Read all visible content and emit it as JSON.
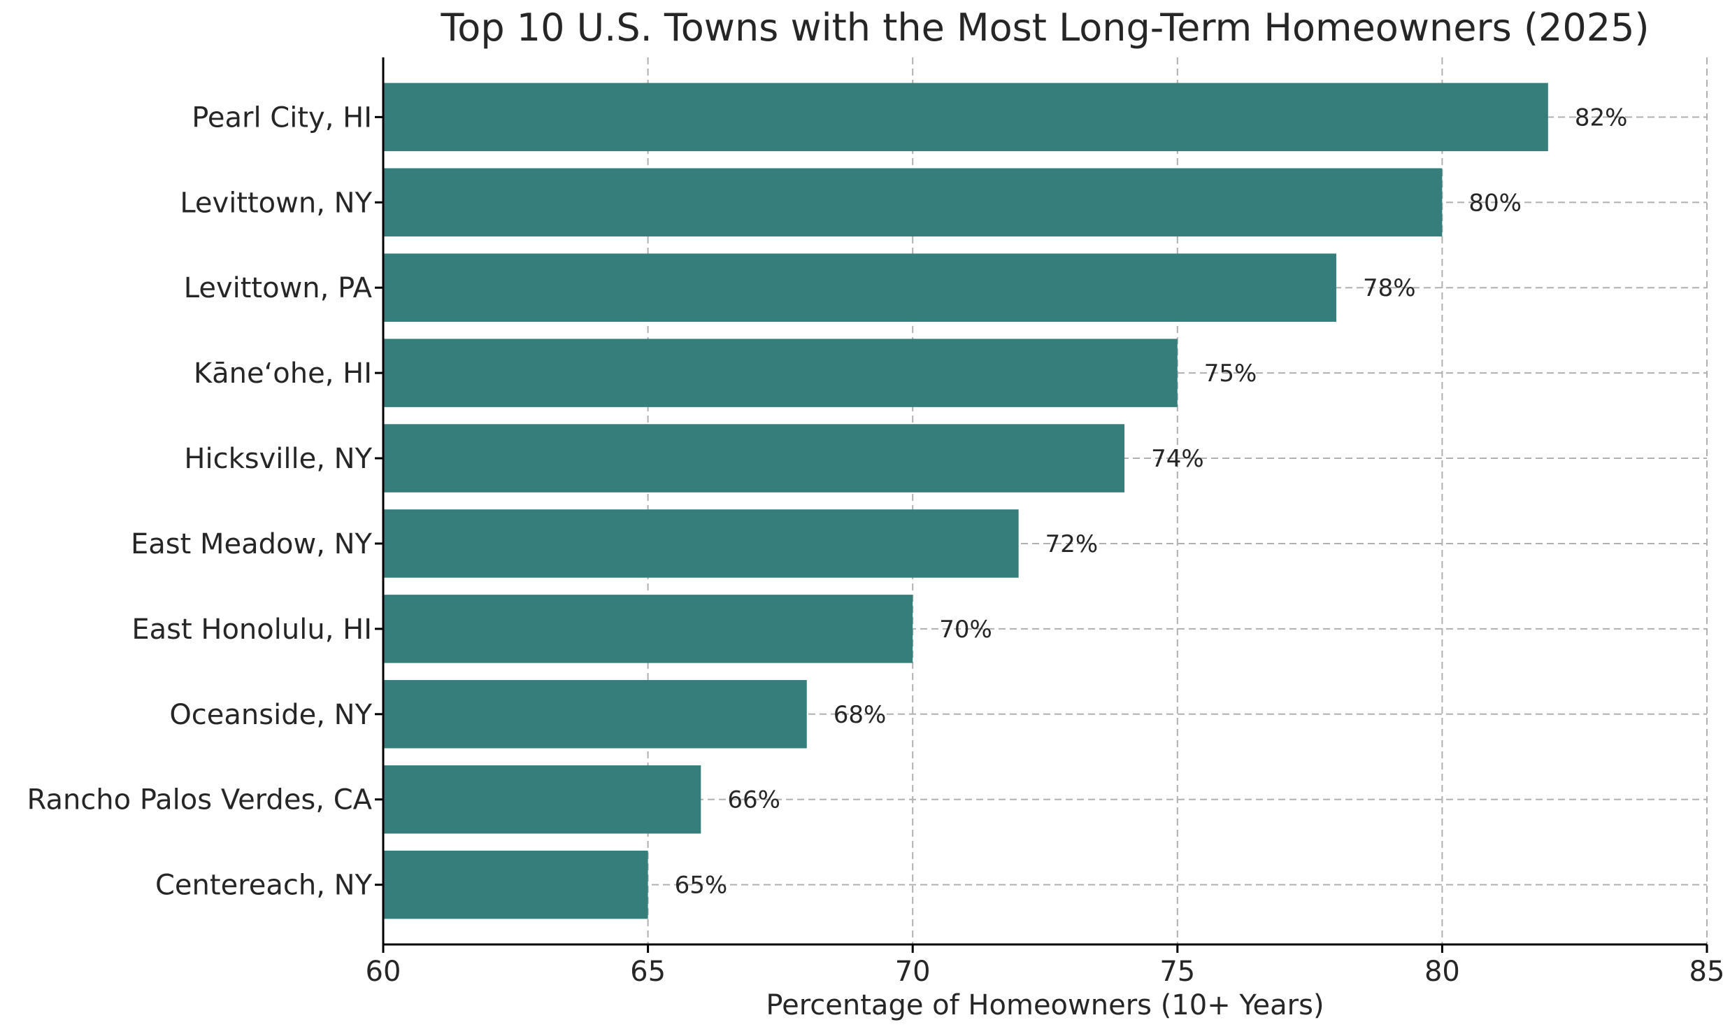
{
  "chart_data": {
    "type": "bar",
    "orientation": "horizontal",
    "title": "Top 10 U.S. Towns with the Most Long-Term Homeowners (2025)",
    "xlabel": "Percentage of Homeowners (10+ Years)",
    "ylabel": "",
    "categories": [
      "Pearl City, HI",
      "Levittown, NY",
      "Levittown, PA",
      "Kāneʻohe, HI",
      "Hicksville, NY",
      "East Meadow, NY",
      "East Honolulu, HI",
      "Oceanside, NY",
      "Rancho Palos Verdes, CA",
      "Centereach, NY"
    ],
    "values": [
      82,
      80,
      78,
      75,
      74,
      72,
      70,
      68,
      66,
      65
    ],
    "value_labels": [
      "82%",
      "80%",
      "78%",
      "75%",
      "74%",
      "72%",
      "70%",
      "68%",
      "66%",
      "65%"
    ],
    "xlim": [
      60,
      85
    ],
    "xticks": [
      60,
      65,
      70,
      75,
      80,
      85
    ],
    "grid": true,
    "bar_color": "#367e7b"
  }
}
